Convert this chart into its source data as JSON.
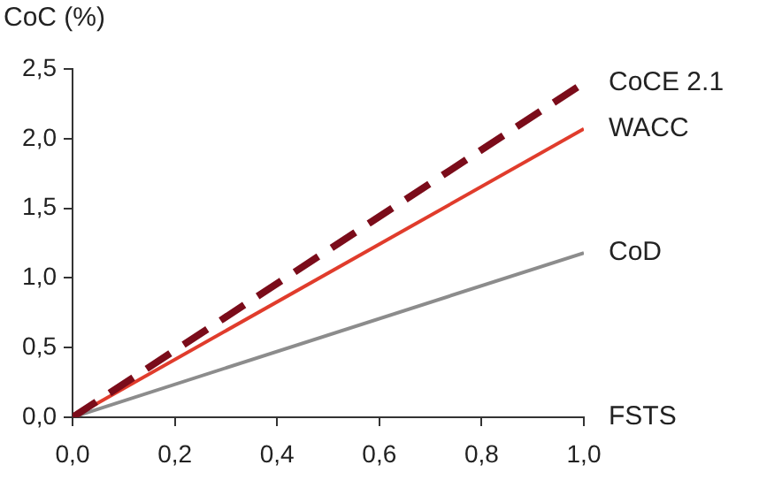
{
  "chart_data": {
    "type": "line",
    "ylabel": "CoC (%)",
    "xlabel": "FSTS",
    "x": [
      0,
      1
    ],
    "series": [
      {
        "name": "CoCE 2.1",
        "color": "#7b0c1a",
        "values": [
          0,
          2.4
        ],
        "line_style": "dashed"
      },
      {
        "name": "WACC",
        "color": "#e03c2c",
        "values": [
          0,
          2.07
        ]
      },
      {
        "name": "CoD",
        "color": "#8c8c8c",
        "values": [
          0,
          1.18
        ]
      }
    ],
    "xlim": [
      0,
      1
    ],
    "xticks": [
      {
        "value": 0,
        "label": "0,0"
      },
      {
        "value": 0.2,
        "label": "0,2"
      },
      {
        "value": 0.4,
        "label": "0,4"
      },
      {
        "value": 0.6,
        "label": "0,6"
      },
      {
        "value": 0.8,
        "label": "0,8"
      },
      {
        "value": 1,
        "label": "1,0"
      }
    ],
    "ylim": [
      0,
      2.5
    ],
    "yticks": [
      {
        "value": 0,
        "label": "0,0"
      },
      {
        "value": 0.5,
        "label": "0,5"
      },
      {
        "value": 1,
        "label": "1,0"
      },
      {
        "value": 1.5,
        "label": "1,5"
      },
      {
        "value": 2,
        "label": "2,0"
      },
      {
        "value": 2.5,
        "label": "2,5"
      }
    ],
    "grid": false,
    "legend": false,
    "marker": "none"
  }
}
